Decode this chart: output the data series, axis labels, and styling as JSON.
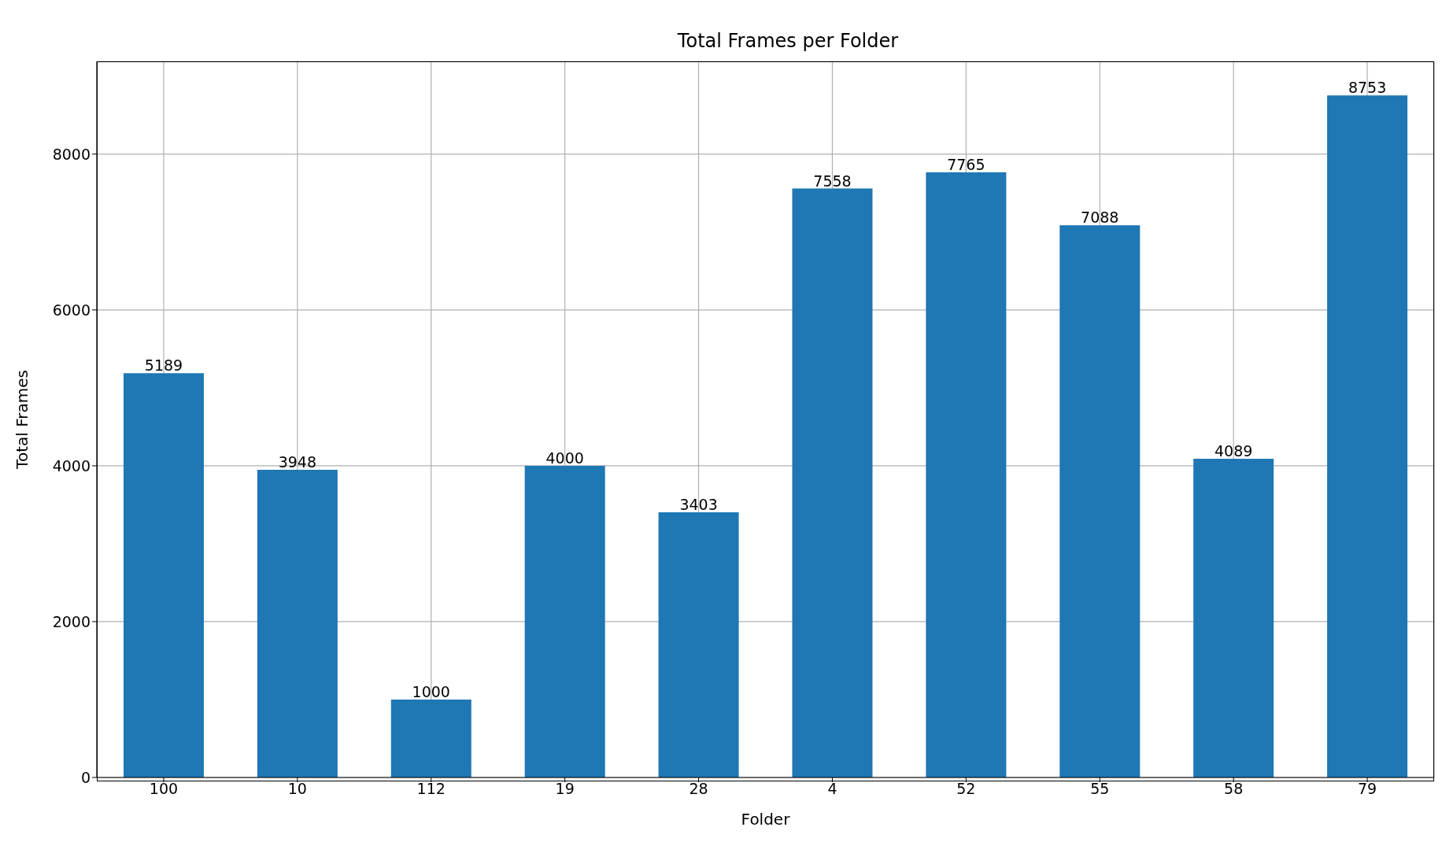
{
  "chart_data": {
    "type": "bar",
    "title": "Total Frames per Folder",
    "xlabel": "Folder",
    "ylabel": "Total Frames",
    "categories": [
      "100",
      "10",
      "112",
      "19",
      "28",
      "4",
      "52",
      "55",
      "58",
      "79"
    ],
    "values": [
      5189,
      3948,
      1000,
      4000,
      3403,
      7558,
      7765,
      7088,
      4089,
      8753
    ],
    "color": "#1f77b4",
    "ylim": [
      0,
      9190
    ],
    "yticks": [
      0,
      2000,
      4000,
      6000,
      8000
    ],
    "grid": true,
    "data_labels": true
  }
}
